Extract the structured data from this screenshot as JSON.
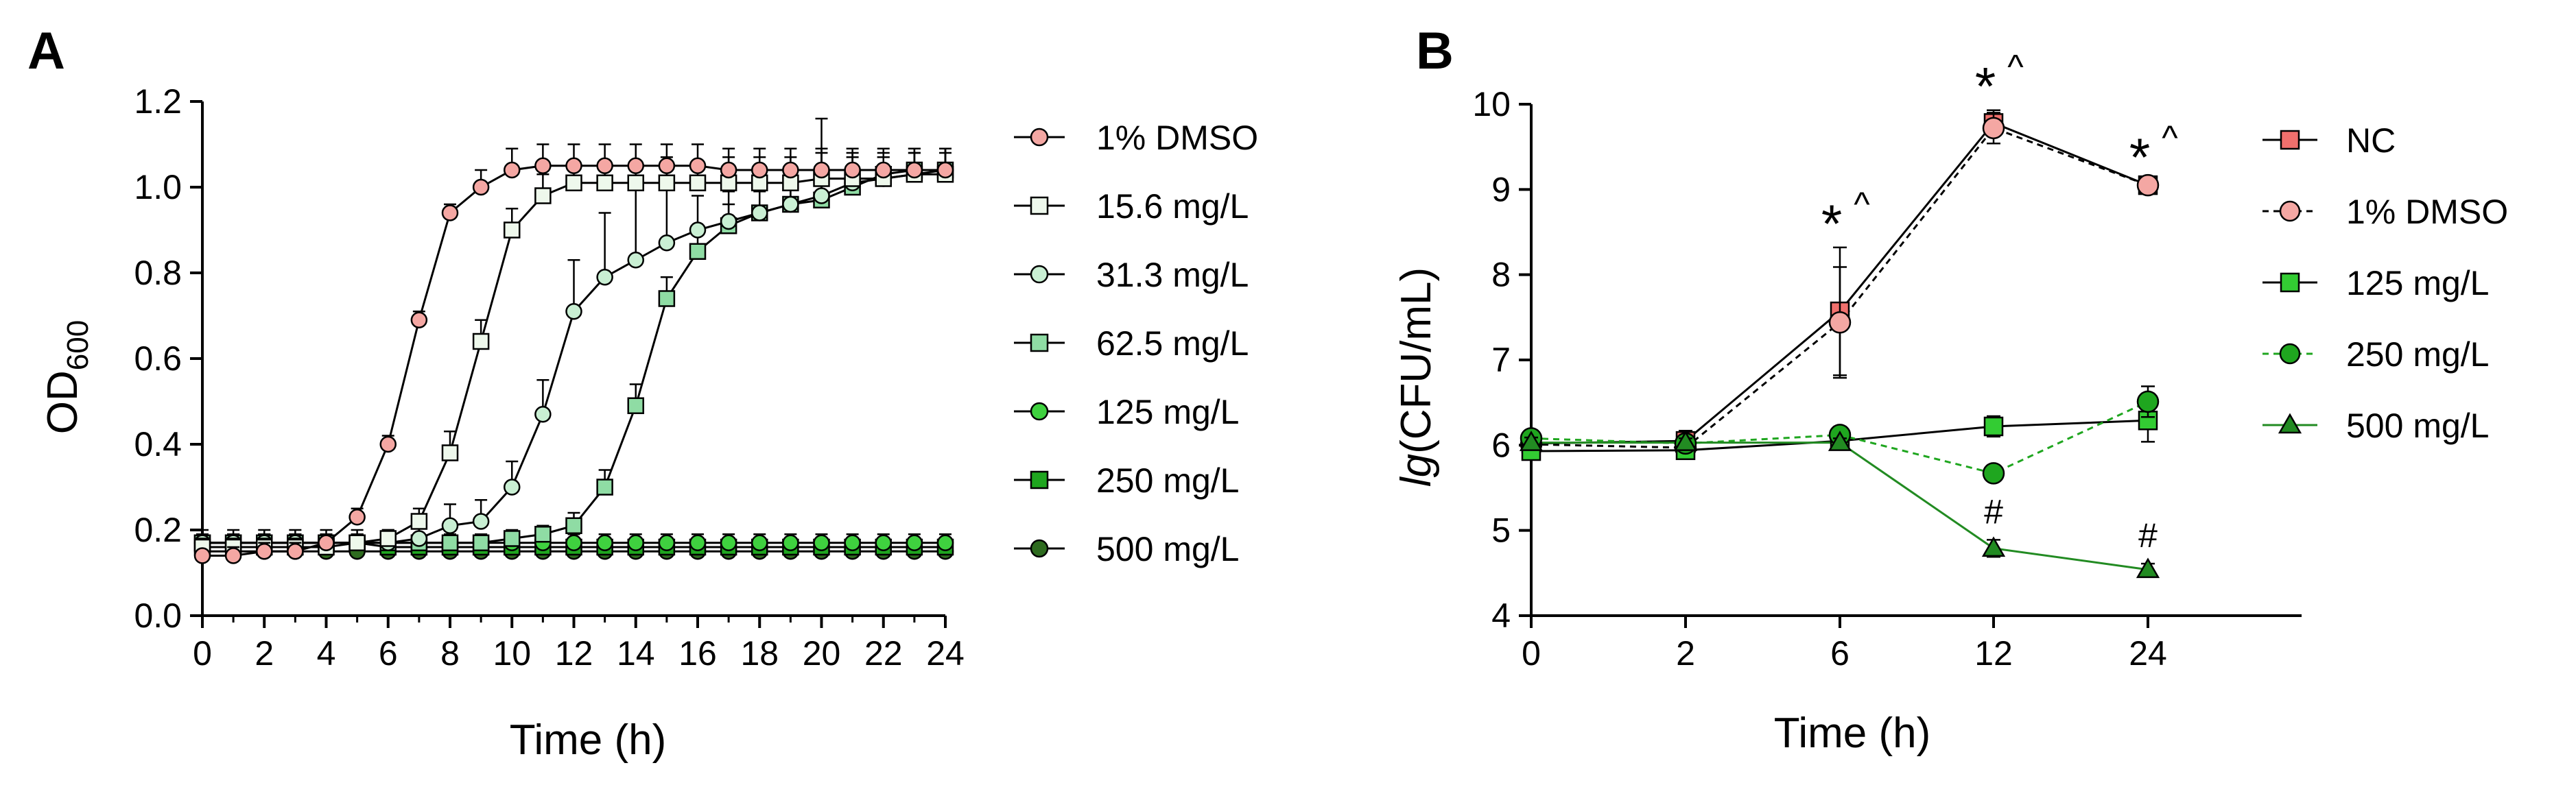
{
  "chart_data": [
    {
      "panel": "A",
      "type": "line",
      "xlabel": "Time (h)",
      "ylabel": "OD",
      "ylabel_sub": "600",
      "xlim": [
        0,
        24
      ],
      "ylim": [
        0,
        1.2
      ],
      "xticks": [
        "0",
        "2",
        "4",
        "6",
        "8",
        "10",
        "12",
        "14",
        "16",
        "18",
        "20",
        "22",
        "24"
      ],
      "yticks": [
        "0.0",
        "0.2",
        "0.4",
        "0.6",
        "0.8",
        "1.0",
        "1.2"
      ],
      "x": [
        0,
        1,
        2,
        3,
        4,
        5,
        6,
        7,
        8,
        9,
        10,
        11,
        12,
        13,
        14,
        15,
        16,
        17,
        18,
        19,
        20,
        21,
        22,
        23,
        24
      ],
      "legend_position": "right",
      "grid": false,
      "series": [
        {
          "name": "1% DMSO",
          "marker": "circle",
          "color": "#f4a7a3",
          "values": [
            0.14,
            0.14,
            0.15,
            0.15,
            0.17,
            0.23,
            0.4,
            0.69,
            0.94,
            1.0,
            1.04,
            1.05,
            1.05,
            1.05,
            1.05,
            1.05,
            1.05,
            1.04,
            1.04,
            1.04,
            1.04,
            1.04,
            1.04,
            1.04,
            1.04
          ],
          "error": [
            0.01,
            0.02,
            0.02,
            0.02,
            0.02,
            0.02,
            0.02,
            0.02,
            0.02,
            0.04,
            0.05,
            0.05,
            0.05,
            0.05,
            0.05,
            0.05,
            0.05,
            0.05,
            0.05,
            0.05,
            0.05,
            0.05,
            0.05,
            0.05,
            0.05
          ]
        },
        {
          "name": "15.6 mg/L",
          "marker": "square",
          "color": "#eef8ec",
          "values": [
            0.16,
            0.16,
            0.16,
            0.16,
            0.16,
            0.17,
            0.18,
            0.22,
            0.38,
            0.64,
            0.9,
            0.98,
            1.01,
            1.01,
            1.01,
            1.01,
            1.01,
            1.01,
            1.01,
            1.01,
            1.02,
            1.02,
            1.02,
            1.03,
            1.03
          ],
          "error": [
            0.02,
            0.02,
            0.02,
            0.02,
            0.02,
            0.02,
            0.02,
            0.03,
            0.05,
            0.05,
            0.05,
            0.05,
            0.05,
            0.05,
            0.05,
            0.05,
            0.05,
            0.06,
            0.06,
            0.06,
            0.06,
            0.06,
            0.05,
            0.05,
            0.05
          ]
        },
        {
          "name": "31.3 mg/L",
          "marker": "circle",
          "color": "#c9efd3",
          "values": [
            0.17,
            0.17,
            0.17,
            0.17,
            0.17,
            0.17,
            0.17,
            0.18,
            0.21,
            0.22,
            0.3,
            0.47,
            0.71,
            0.79,
            0.83,
            0.87,
            0.9,
            0.92,
            0.94,
            0.96,
            0.98,
            1.01,
            1.02,
            1.03,
            1.04
          ],
          "error": [
            0.03,
            0.03,
            0.03,
            0.03,
            0.03,
            0.03,
            0.03,
            0.03,
            0.05,
            0.05,
            0.06,
            0.08,
            0.12,
            0.15,
            0.18,
            0.2,
            0.08,
            0.07,
            0.06,
            0.05,
            0.18,
            0.06,
            0.05,
            0.05,
            0.05
          ]
        },
        {
          "name": "62.5 mg/L",
          "marker": "square",
          "color": "#8fdca4",
          "values": [
            0.17,
            0.17,
            0.17,
            0.17,
            0.17,
            0.17,
            0.17,
            0.17,
            0.17,
            0.17,
            0.18,
            0.19,
            0.21,
            0.3,
            0.49,
            0.74,
            0.85,
            0.91,
            0.94,
            0.96,
            0.97,
            1.0,
            1.03,
            1.04,
            1.04
          ],
          "error": [
            0.02,
            0.02,
            0.02,
            0.02,
            0.02,
            0.02,
            0.02,
            0.02,
            0.02,
            0.02,
            0.02,
            0.02,
            0.03,
            0.04,
            0.05,
            0.05,
            0.05,
            0.05,
            0.05,
            0.05,
            0.05,
            0.05,
            0.05,
            0.05,
            0.05
          ]
        },
        {
          "name": "125 mg/L",
          "marker": "circle",
          "color": "#3fd13f",
          "values": [
            0.17,
            0.17,
            0.17,
            0.17,
            0.17,
            0.17,
            0.17,
            0.17,
            0.17,
            0.17,
            0.17,
            0.17,
            0.17,
            0.17,
            0.17,
            0.17,
            0.17,
            0.17,
            0.17,
            0.17,
            0.17,
            0.17,
            0.17,
            0.17,
            0.17
          ],
          "error": [
            0.02,
            0.02,
            0.02,
            0.02,
            0.02,
            0.02,
            0.02,
            0.02,
            0.02,
            0.02,
            0.02,
            0.02,
            0.02,
            0.02,
            0.02,
            0.02,
            0.02,
            0.02,
            0.02,
            0.02,
            0.02,
            0.02,
            0.02,
            0.02,
            0.02
          ]
        },
        {
          "name": "250 mg/L",
          "marker": "square",
          "color": "#1fa61f",
          "values": [
            0.17,
            0.17,
            0.17,
            0.17,
            0.17,
            0.17,
            0.16,
            0.16,
            0.16,
            0.16,
            0.16,
            0.16,
            0.16,
            0.16,
            0.16,
            0.16,
            0.16,
            0.16,
            0.16,
            0.16,
            0.16,
            0.16,
            0.16,
            0.16,
            0.16
          ],
          "error": [
            0.02,
            0.02,
            0.02,
            0.02,
            0.02,
            0.02,
            0.02,
            0.02,
            0.02,
            0.02,
            0.02,
            0.02,
            0.02,
            0.02,
            0.02,
            0.02,
            0.02,
            0.02,
            0.02,
            0.02,
            0.02,
            0.02,
            0.02,
            0.02,
            0.02
          ]
        },
        {
          "name": "500 mg/L",
          "marker": "circle",
          "color": "#2e6b1f",
          "values": [
            0.15,
            0.15,
            0.15,
            0.15,
            0.15,
            0.15,
            0.15,
            0.15,
            0.15,
            0.15,
            0.15,
            0.15,
            0.15,
            0.15,
            0.15,
            0.15,
            0.15,
            0.15,
            0.15,
            0.15,
            0.15,
            0.15,
            0.15,
            0.15,
            0.15
          ],
          "error": [
            0.01,
            0.01,
            0.01,
            0.01,
            0.01,
            0.01,
            0.01,
            0.01,
            0.01,
            0.01,
            0.01,
            0.01,
            0.01,
            0.01,
            0.01,
            0.01,
            0.01,
            0.01,
            0.01,
            0.01,
            0.01,
            0.01,
            0.01,
            0.01,
            0.01
          ]
        }
      ]
    },
    {
      "panel": "B",
      "type": "line",
      "xlabel": "Time (h)",
      "ylabel_italic": "lg",
      "ylabel": "(CFU/mL)",
      "categories": [
        "0",
        "2",
        "6",
        "12",
        "24"
      ],
      "yticks": [
        "4",
        "5",
        "6",
        "7",
        "8",
        "9",
        "10"
      ],
      "ylim": [
        4,
        10
      ],
      "legend_position": "right",
      "grid": false,
      "series": [
        {
          "name": "NC",
          "marker": "square",
          "line": "solid",
          "color": "#f0706d",
          "line_color": "#000000",
          "values": [
            6.02,
            6.05,
            7.57,
            9.78,
            9.05
          ],
          "error": [
            0.1,
            0.12,
            0.75,
            0.15,
            0.05
          ]
        },
        {
          "name": "1% DMSO",
          "marker": "circle",
          "line": "dashed",
          "color": "#f4a7a3",
          "line_color": "#000000",
          "values": [
            6.01,
            5.97,
            7.44,
            9.72,
            9.05
          ],
          "error": [
            0.1,
            0.1,
            0.65,
            0.18,
            0.05
          ]
        },
        {
          "name": "125 mg/L",
          "marker": "square",
          "line": "solid",
          "color": "#33cc33",
          "line_color": "#000000",
          "values": [
            5.93,
            5.94,
            6.05,
            6.22,
            6.29
          ],
          "error": [
            0.08,
            0.08,
            0.08,
            0.12,
            0.25
          ]
        },
        {
          "name": "250 mg/L",
          "marker": "circle",
          "line": "dashed",
          "color": "#1fa61f",
          "line_color": "#1fa61f",
          "values": [
            6.08,
            6.02,
            6.12,
            5.67,
            6.51
          ],
          "error": [
            0.06,
            0.05,
            0.08,
            0.05,
            0.18
          ]
        },
        {
          "name": "500 mg/L",
          "marker": "triangle",
          "line": "solid",
          "color": "#228b22",
          "line_color": "#228b22",
          "values": [
            6.03,
            6.03,
            6.03,
            4.79,
            4.54
          ],
          "error": [
            0.06,
            0.05,
            0.05,
            0.1,
            0.07
          ]
        }
      ],
      "annotations": [
        {
          "category": "6",
          "star": "*",
          "caret": "^"
        },
        {
          "category": "12",
          "star": "*",
          "caret": "^"
        },
        {
          "category": "24",
          "star": "*",
          "caret": "^"
        },
        {
          "category": "12",
          "hash": "#"
        },
        {
          "category": "24",
          "hash": "#"
        }
      ]
    }
  ]
}
